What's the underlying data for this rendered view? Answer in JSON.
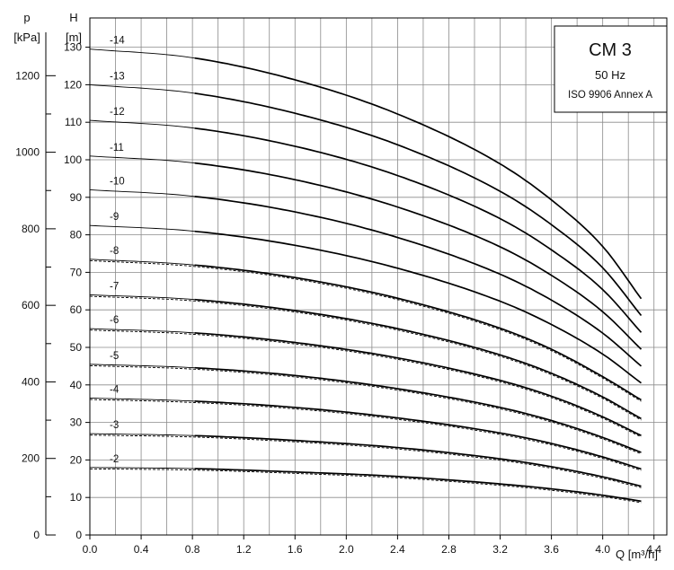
{
  "chart_data": {
    "type": "line",
    "legend_box": {
      "title": "CM 3",
      "frequency": "50 Hz",
      "standard": "ISO 9906 Annex A",
      "placement": "top-right"
    },
    "xlabel": "Q [m³/h]",
    "ylabel_head_symbol": "H",
    "ylabel_head_unit": "[m]",
    "ylabel_pressure_symbol": "p",
    "ylabel_pressure_unit": "[kPa]",
    "xlim": [
      0,
      4.5
    ],
    "ylim": [
      0,
      132
    ],
    "pressure_lim": [
      0,
      1294
    ],
    "grid": true,
    "x_ticks": [
      "0.0",
      "0.4",
      "0.8",
      "1.2",
      "1.6",
      "2.0",
      "2.4",
      "2.8",
      "3.2",
      "3.6",
      "4.0",
      "4.4"
    ],
    "y_ticks": [
      "0",
      "10",
      "20",
      "30",
      "40",
      "50",
      "60",
      "70",
      "80",
      "90",
      "100",
      "110",
      "120",
      "130"
    ],
    "pressure_ticks": [
      "0",
      "200",
      "400",
      "600",
      "800",
      "1000",
      "1200"
    ],
    "series": [
      {
        "name": "-2",
        "x": [
          0,
          0.8,
          1.6,
          2.4,
          3.2,
          3.6,
          4.0,
          4.3
        ],
        "y": [
          18,
          17.7,
          16.8,
          15.6,
          13.6,
          12.3,
          10.6,
          9
        ]
      },
      {
        "name": "-3",
        "x": [
          0,
          0.8,
          1.6,
          2.4,
          3.2,
          3.6,
          4.0,
          4.3
        ],
        "y": [
          27,
          26.5,
          25.2,
          23.3,
          20.3,
          18.2,
          15.5,
          13
        ]
      },
      {
        "name": "-4",
        "x": [
          0,
          0.8,
          1.6,
          2.4,
          3.2,
          3.6,
          4.0,
          4.3
        ],
        "y": [
          36.5,
          35.7,
          34,
          31.2,
          27.2,
          24.4,
          20.8,
          17.6
        ]
      },
      {
        "name": "-5",
        "x": [
          0,
          0.8,
          1.6,
          2.4,
          3.2,
          3.6,
          4.0,
          4.3
        ],
        "y": [
          45.5,
          44.6,
          42.5,
          39,
          34,
          30.5,
          26,
          22
        ]
      },
      {
        "name": "-6",
        "x": [
          0,
          0.8,
          1.6,
          2.4,
          3.2,
          3.6,
          4.0,
          4.3
        ],
        "y": [
          55,
          53.9,
          51.3,
          47.2,
          41.2,
          37,
          31.5,
          26.5
        ]
      },
      {
        "name": "-7",
        "x": [
          0,
          0.8,
          1.6,
          2.4,
          3.2,
          3.6,
          4.0,
          4.3
        ],
        "y": [
          64,
          62.8,
          59.8,
          55,
          48,
          43.1,
          36.8,
          31
        ]
      },
      {
        "name": "-8",
        "x": [
          0,
          0.8,
          1.6,
          2.4,
          3.2,
          3.6,
          4.0,
          4.3
        ],
        "y": [
          73.5,
          72,
          68.6,
          63.1,
          55.1,
          49.5,
          42.2,
          36
        ]
      },
      {
        "name": "-9",
        "x": [
          0,
          0.8,
          1.6,
          2.4,
          3.2,
          3.6,
          4.0,
          4.3
        ],
        "y": [
          82.5,
          81,
          77.2,
          71.1,
          62.3,
          56.1,
          48.2,
          40.5
        ]
      },
      {
        "name": "-10",
        "x": [
          0,
          0.8,
          1.6,
          2.4,
          3.2,
          3.6,
          4.0,
          4.3
        ],
        "y": [
          92,
          90.3,
          86.1,
          79.3,
          69.5,
          62.6,
          53.8,
          45
        ]
      },
      {
        "name": "-11",
        "x": [
          0,
          0.8,
          1.6,
          2.4,
          3.2,
          3.6,
          4.0,
          4.3
        ],
        "y": [
          101,
          99.2,
          94.7,
          87.4,
          76.8,
          69.2,
          59.5,
          49.5
        ]
      },
      {
        "name": "-12",
        "x": [
          0,
          0.8,
          1.6,
          2.4,
          3.2,
          3.6,
          4.0,
          4.3
        ],
        "y": [
          110.5,
          108.5,
          103.6,
          95.8,
          84.3,
          76,
          65.4,
          54
        ]
      },
      {
        "name": "-13",
        "x": [
          0,
          0.8,
          1.6,
          2.4,
          3.2,
          3.6,
          4.0,
          4.3
        ],
        "y": [
          120,
          117.8,
          112.4,
          104,
          91.6,
          82.7,
          71.2,
          58.5
        ]
      },
      {
        "name": "-14",
        "x": [
          0,
          0.8,
          1.6,
          2.4,
          3.2,
          3.6,
          4.0,
          4.3
        ],
        "y": [
          129.5,
          127.2,
          121.3,
          112.2,
          98.9,
          89.3,
          76.9,
          63
        ]
      }
    ]
  }
}
